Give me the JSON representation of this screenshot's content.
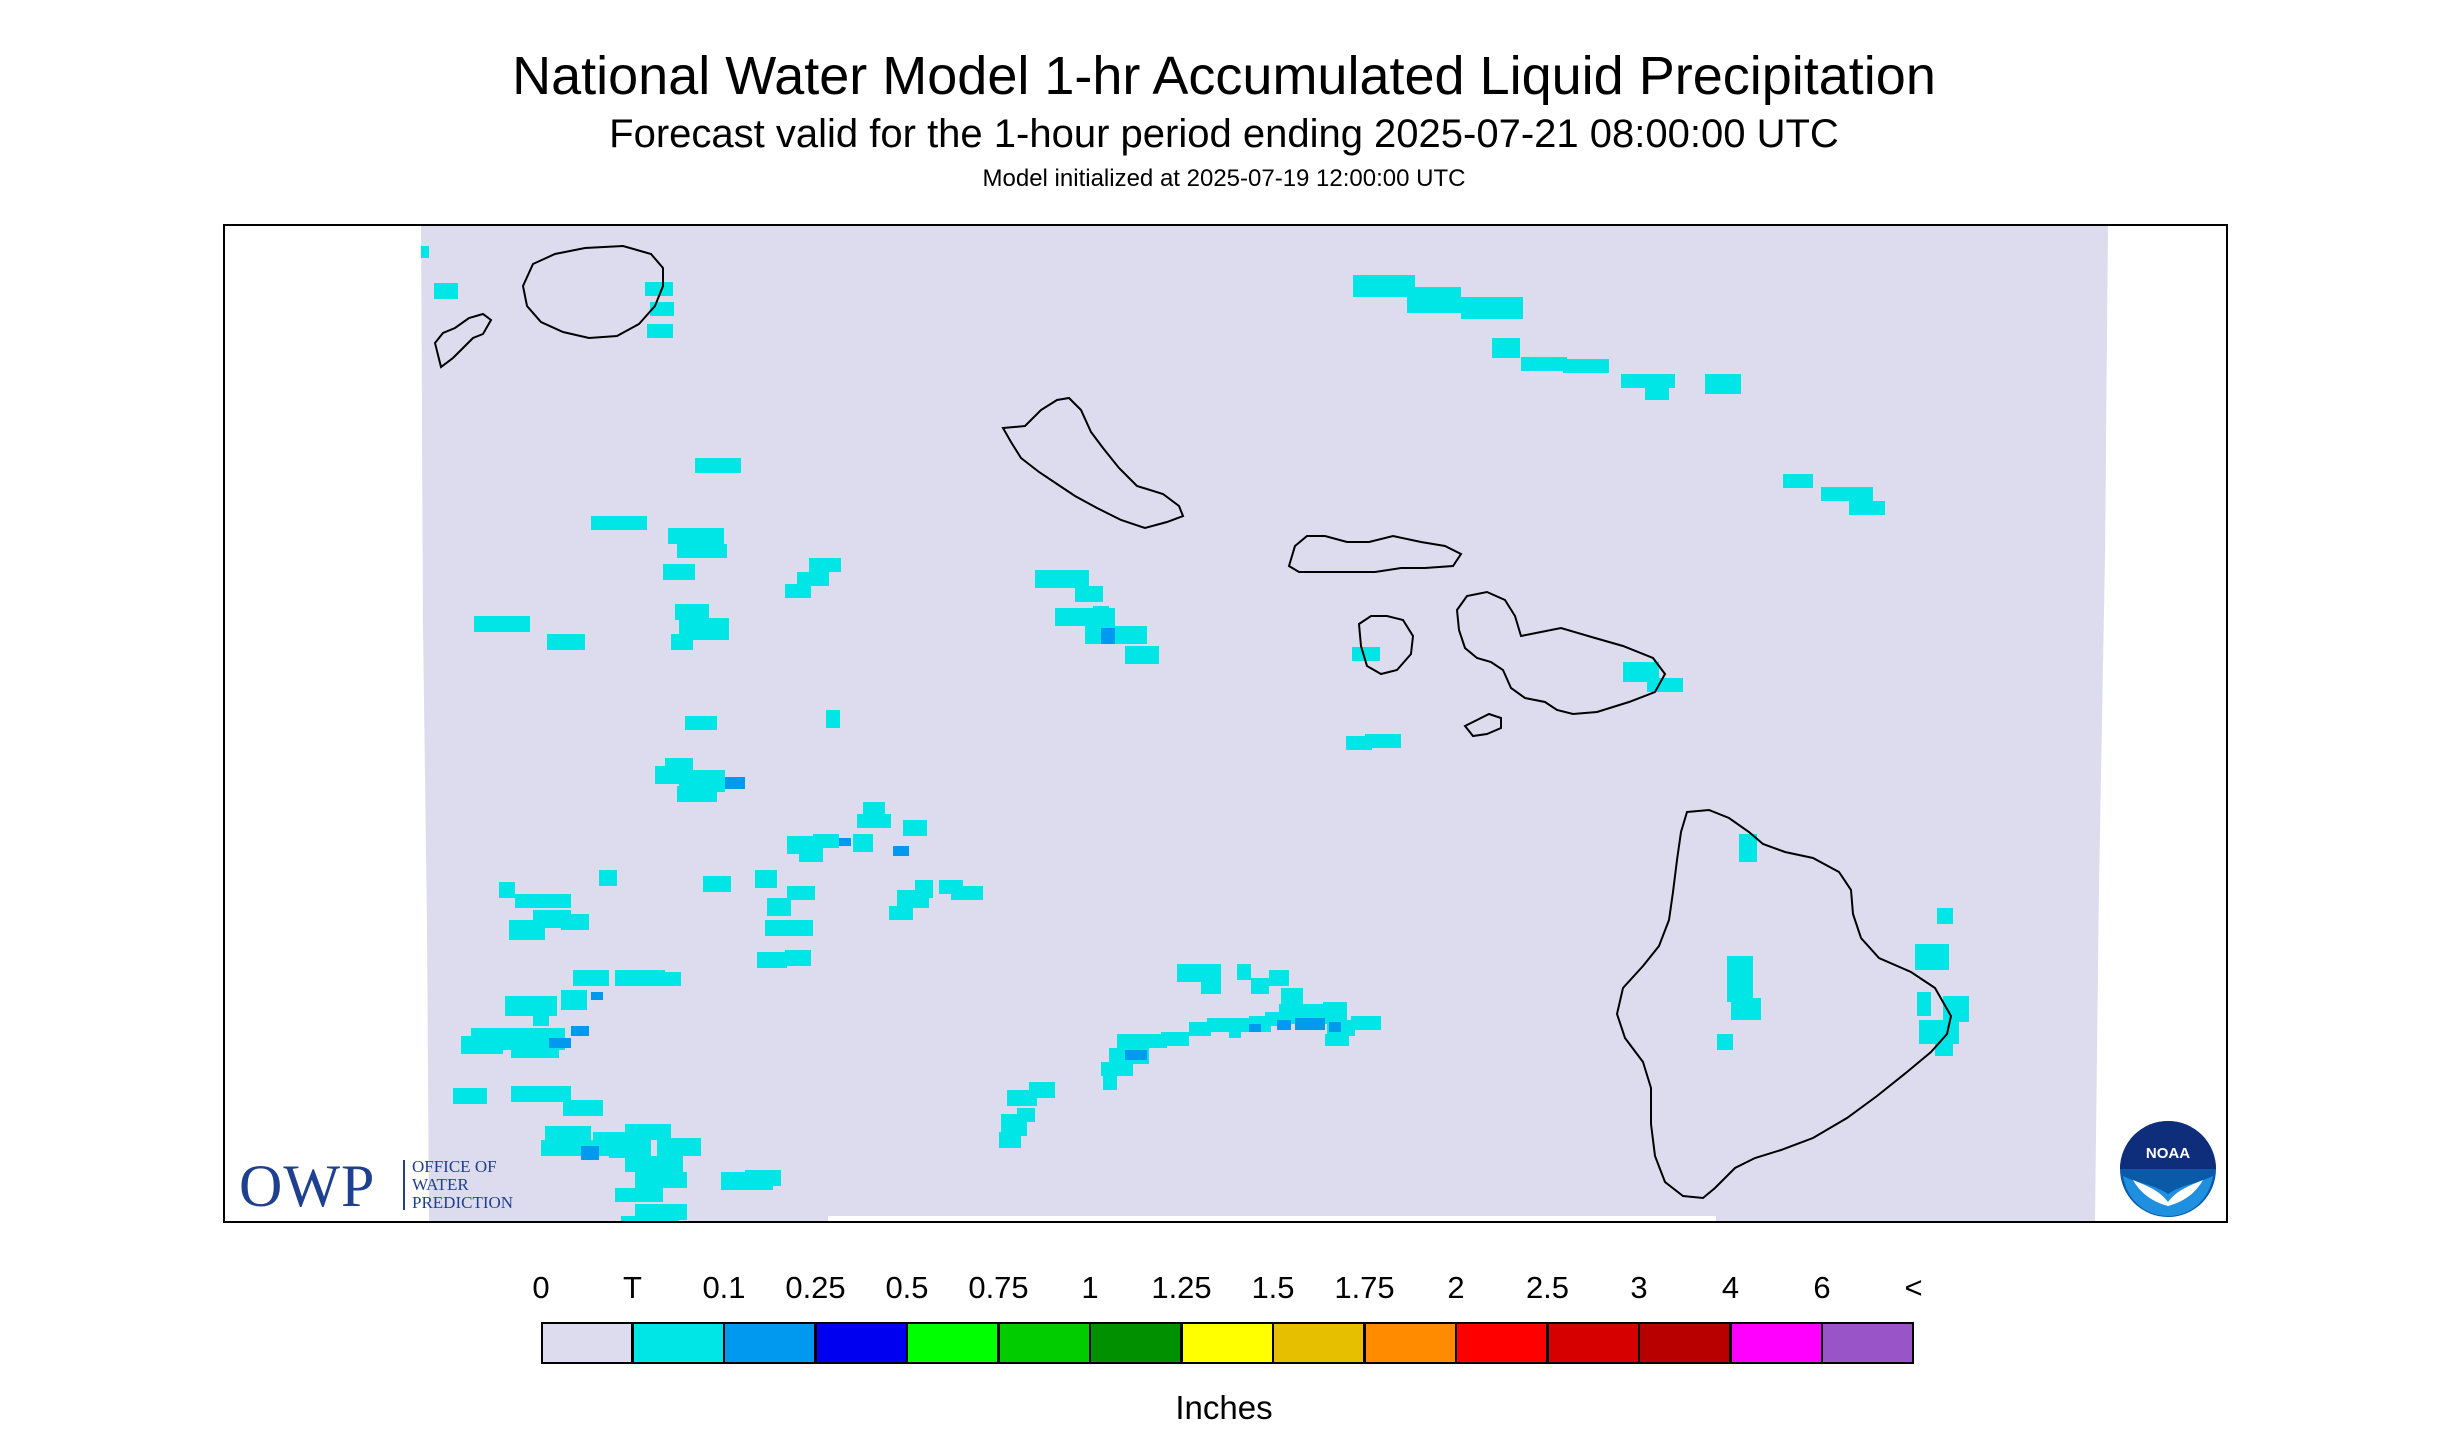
{
  "header": {
    "title": "National Water Model 1-hr Accumulated Liquid Precipitation",
    "subtitle": "Forecast valid for the 1-hour period ending 2025-07-21 08:00:00 UTC",
    "init_line": "Model initialized at 2025-07-19 12:00:00 UTC"
  },
  "map": {
    "region": "Hawaiian Islands",
    "background_color": "#ffffff",
    "domain_color": "#dcdcee",
    "coastline_color": "#000000",
    "islands": [
      "Niihau",
      "Kauai",
      "Oahu",
      "Molokai",
      "Lanai",
      "Maui",
      "Kahoolawe",
      "Hawaii"
    ]
  },
  "legend": {
    "ticks": [
      "0",
      "T",
      "0.1",
      "0.25",
      "0.5",
      "0.75",
      "1",
      "1.25",
      "1.5",
      "1.75",
      "2",
      "2.5",
      "3",
      "4",
      "6",
      "<"
    ],
    "colors": [
      "#dcdcee",
      "#00e5e5",
      "#0099f0",
      "#0000f0",
      "#00ff00",
      "#00cc00",
      "#009000",
      "#ffff00",
      "#e6bf00",
      "#ff8c00",
      "#ff0000",
      "#d60000",
      "#b80000",
      "#ff00ff",
      "#9955c8"
    ],
    "units": "Inches"
  },
  "logos": {
    "owp_big": "OWP",
    "owp_lines": [
      "OFFICE OF",
      "WATER",
      "PREDICTION"
    ],
    "noaa": "NOAA"
  }
}
